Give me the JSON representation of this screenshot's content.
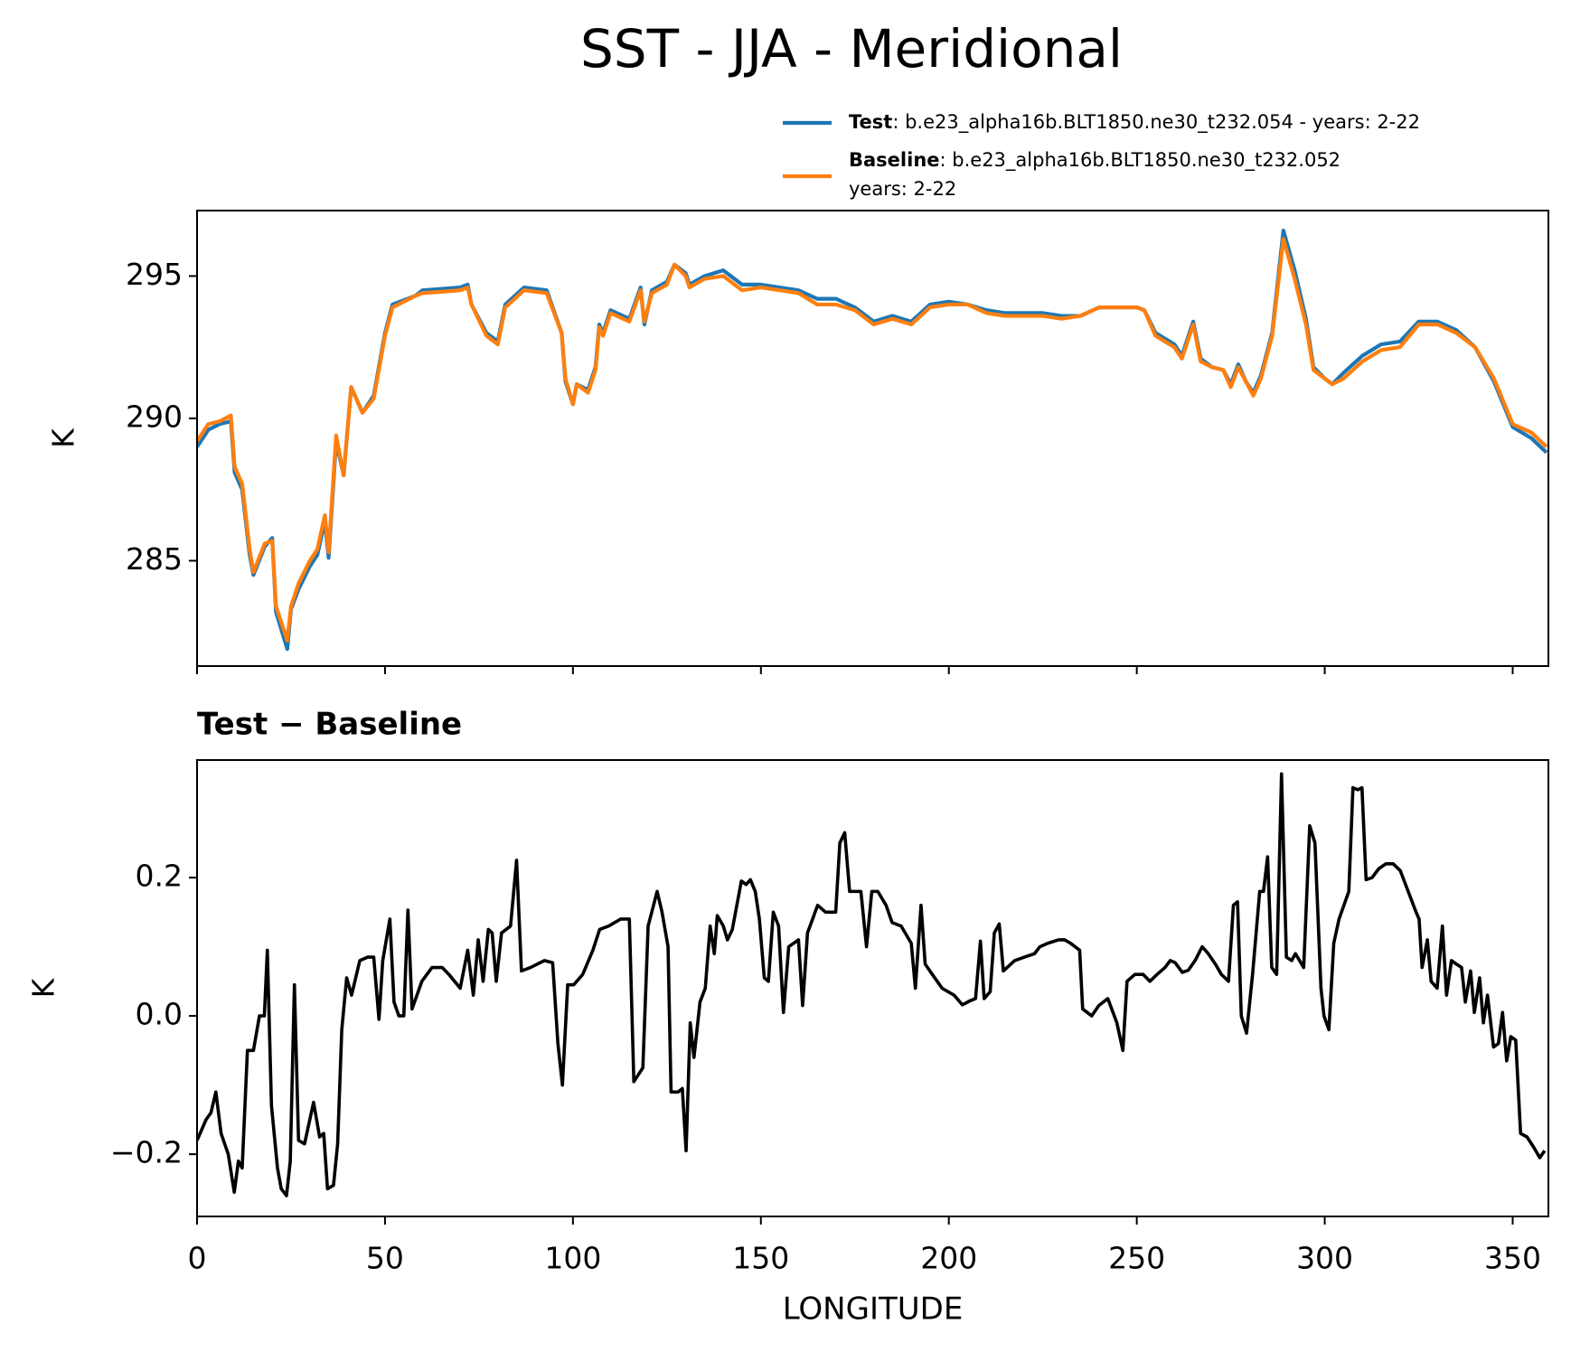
{
  "title": "SST - JJA - Meridional",
  "chart_data": [
    {
      "type": "line",
      "ylabel": "K",
      "x": [
        0,
        3,
        6,
        9,
        10,
        12,
        14,
        15,
        18,
        20,
        21,
        24,
        25,
        27,
        30,
        32,
        34,
        35,
        37,
        39,
        41,
        44,
        47,
        50,
        52,
        58,
        60,
        70,
        72,
        73,
        77,
        80,
        82,
        87,
        93,
        97,
        98,
        100,
        101,
        104,
        106,
        107,
        108,
        110,
        115,
        118,
        119,
        121,
        125,
        127,
        130,
        131,
        135,
        140,
        145,
        150,
        155,
        160,
        165,
        170,
        175,
        180,
        185,
        190,
        195,
        200,
        205,
        210,
        215,
        220,
        225,
        230,
        235,
        240,
        245,
        250,
        252,
        255,
        260,
        262,
        265,
        267,
        270,
        273,
        275,
        277,
        279,
        281,
        283,
        286,
        289,
        292,
        295,
        297,
        300,
        302,
        305,
        310,
        315,
        320,
        325,
        330,
        335,
        340,
        345,
        350,
        355,
        359
      ],
      "series": [
        {
          "name": "Test",
          "description": [
            ": b.e23_alpha16b.BLT1850.ne30_t232.054 - years: 2-22"
          ],
          "color": "#1f77b4",
          "values": [
            289.0,
            289.6,
            289.8,
            289.9,
            288.1,
            287.5,
            285.2,
            284.5,
            285.5,
            285.8,
            283.2,
            281.9,
            283.3,
            284.0,
            284.8,
            285.2,
            286.4,
            285.1,
            289.2,
            288.0,
            291.1,
            290.2,
            290.8,
            293.0,
            294.0,
            294.3,
            294.5,
            294.6,
            294.7,
            294.0,
            293.0,
            292.7,
            294.0,
            294.6,
            294.5,
            293.0,
            291.3,
            290.5,
            291.2,
            291.0,
            291.8,
            293.3,
            293.0,
            293.8,
            293.5,
            294.6,
            293.3,
            294.5,
            294.8,
            295.4,
            295.1,
            294.7,
            295.0,
            295.2,
            294.7,
            294.7,
            294.6,
            294.5,
            294.2,
            294.2,
            293.9,
            293.4,
            293.6,
            293.4,
            294.0,
            294.1,
            294.0,
            293.8,
            293.7,
            293.7,
            293.7,
            293.6,
            293.6,
            293.9,
            293.9,
            293.9,
            293.8,
            293.0,
            292.6,
            292.2,
            293.4,
            292.1,
            291.8,
            291.7,
            291.2,
            291.9,
            291.3,
            290.9,
            291.5,
            293.0,
            296.6,
            295.2,
            293.5,
            291.8,
            291.4,
            291.2,
            291.6,
            292.2,
            292.6,
            292.7,
            293.4,
            293.4,
            293.1,
            292.5,
            291.3,
            289.7,
            289.3,
            288.8
          ]
        },
        {
          "name": "Baseline",
          "description": [
            ": b.e23_alpha16b.BLT1850.ne30_t232.052",
            "years: 2-22"
          ],
          "color": "#ff7f0e",
          "values": [
            289.2,
            289.8,
            289.9,
            290.1,
            288.3,
            287.7,
            285.4,
            284.6,
            285.6,
            285.7,
            283.4,
            282.2,
            283.4,
            284.2,
            285.0,
            285.4,
            286.6,
            285.3,
            289.4,
            288.0,
            291.1,
            290.2,
            290.7,
            292.9,
            293.9,
            294.3,
            294.4,
            294.5,
            294.6,
            294.0,
            292.9,
            292.6,
            293.9,
            294.5,
            294.4,
            293.0,
            291.4,
            290.5,
            291.2,
            290.9,
            291.7,
            293.2,
            292.9,
            293.7,
            293.4,
            294.5,
            293.4,
            294.4,
            294.7,
            295.4,
            295.0,
            294.6,
            294.9,
            295.0,
            294.5,
            294.6,
            294.5,
            294.4,
            294.0,
            294.0,
            293.8,
            293.3,
            293.5,
            293.3,
            293.9,
            294.0,
            294.0,
            293.7,
            293.6,
            293.6,
            293.6,
            293.5,
            293.6,
            293.9,
            293.9,
            293.9,
            293.8,
            292.9,
            292.5,
            292.1,
            293.3,
            292.0,
            291.8,
            291.7,
            291.1,
            291.8,
            291.3,
            290.8,
            291.4,
            292.9,
            296.3,
            294.9,
            293.3,
            291.7,
            291.4,
            291.2,
            291.4,
            292.0,
            292.4,
            292.5,
            293.3,
            293.3,
            293.0,
            292.5,
            291.4,
            289.8,
            289.5,
            289.0
          ]
        }
      ],
      "xlim": [
        0,
        359.5
      ],
      "xticks": [
        0,
        50,
        100,
        150,
        200,
        250,
        300,
        350
      ],
      "ylim": [
        281.3,
        297.3
      ],
      "yticks": [
        285,
        290,
        295
      ]
    },
    {
      "type": "line",
      "title": "Test − Baseline",
      "xlabel": "LONGITUDE",
      "ylabel": "K",
      "color": "#000000",
      "x": [
        0,
        2.4,
        3.7,
        5,
        6.4,
        8.3,
        9.9,
        11,
        12,
        13.4,
        15,
        16.6,
        17.9,
        18.7,
        19.8,
        21.4,
        22.4,
        23.8,
        24.8,
        25.9,
        27,
        28.6,
        31,
        32.6,
        33.7,
        34.7,
        36.3,
        37.4,
        38.5,
        39.8,
        41.1,
        43.3,
        45.4,
        47,
        48.4,
        49.4,
        51.3,
        52.4,
        53.7,
        55,
        56.1,
        57.2,
        59.8,
        62.5,
        65.2,
        67,
        70,
        72,
        73.5,
        74.8,
        76.1,
        77.5,
        78.5,
        79.6,
        81,
        83.4,
        85,
        86.3,
        88.7,
        92.4,
        94.6,
        96,
        97.2,
        98.6,
        100.2,
        102.6,
        105.3,
        107.1,
        109.5,
        112.7,
        115,
        116.2,
        118.6,
        120,
        122.4,
        123.7,
        125.3,
        126.1,
        128,
        129.1,
        130.1,
        131.2,
        132.2,
        133.8,
        135.2,
        136.5,
        137.6,
        138.4,
        140,
        141.1,
        142.4,
        144.8,
        146.1,
        147.2,
        148.5,
        149.6,
        150.9,
        152,
        153.3,
        154.7,
        156,
        157.4,
        160,
        161.1,
        162.4,
        165.1,
        167.2,
        169.9,
        171,
        172.3,
        173.6,
        176.6,
        178.1,
        179.5,
        181.1,
        183.3,
        184.9,
        187.3,
        190,
        191.1,
        192.6,
        193.7,
        195.6,
        198.2,
        201.4,
        203.6,
        205.7,
        207.1,
        208.4,
        209.4,
        211,
        212.1,
        213.4,
        214.5,
        217.5,
        220.1,
        222.8,
        224.2,
        226.3,
        229.2,
        230.8,
        232.4,
        234.8,
        235.6,
        238,
        239.9,
        242.3,
        244.7,
        246.3,
        247.4,
        249.5,
        251.7,
        253.5,
        255.4,
        257.5,
        258.9,
        260.2,
        262.1,
        263.7,
        265.5,
        267.4,
        269,
        270.9,
        272.5,
        274.4,
        275.7,
        276.8,
        277.8,
        279.2,
        280.8,
        282.7,
        283.7,
        284.8,
        285.9,
        287.2,
        288.5,
        289.8,
        291.2,
        292.2,
        294.4,
        296,
        297.4,
        299,
        299.8,
        301.1,
        302.4,
        303.8,
        305.1,
        306.4,
        307.5,
        308.8,
        309.9,
        311,
        312.6,
        314.4,
        316.3,
        318.2,
        320.1,
        322.2,
        324.3,
        325.1,
        325.9,
        327.3,
        328.3,
        329.9,
        331.3,
        332.4,
        333.7,
        335,
        336.4,
        337.4,
        338.8,
        339.8,
        341.2,
        342.2,
        343.3,
        344.9,
        346.2,
        347.3,
        348.4,
        349.5,
        350.8,
        352.1,
        353.8,
        355.6,
        357.2,
        358.5
      ],
      "values": [
        -0.18,
        -0.15,
        -0.14,
        -0.11,
        -0.17,
        -0.2,
        -0.255,
        -0.21,
        -0.22,
        -0.05,
        -0.05,
        0.0,
        0.0,
        0.095,
        -0.13,
        -0.22,
        -0.25,
        -0.26,
        -0.21,
        0.045,
        -0.18,
        -0.185,
        -0.125,
        -0.175,
        -0.17,
        -0.25,
        -0.245,
        -0.185,
        -0.02,
        0.055,
        0.03,
        0.08,
        0.085,
        0.085,
        -0.005,
        0.08,
        0.14,
        0.02,
        0.0,
        0.0,
        0.153,
        0.01,
        0.05,
        0.07,
        0.07,
        0.06,
        0.04,
        0.095,
        0.03,
        0.11,
        0.05,
        0.125,
        0.12,
        0.05,
        0.12,
        0.13,
        0.225,
        0.065,
        0.07,
        0.08,
        0.077,
        -0.04,
        -0.1,
        0.045,
        0.045,
        0.06,
        0.095,
        0.125,
        0.13,
        0.14,
        0.14,
        -0.095,
        -0.075,
        0.13,
        0.18,
        0.15,
        0.1,
        -0.11,
        -0.11,
        -0.105,
        -0.195,
        -0.01,
        -0.06,
        0.02,
        0.04,
        0.13,
        0.09,
        0.145,
        0.13,
        0.11,
        0.125,
        0.195,
        0.19,
        0.197,
        0.18,
        0.14,
        0.055,
        0.05,
        0.15,
        0.13,
        0.005,
        0.1,
        0.11,
        0.015,
        0.12,
        0.16,
        0.15,
        0.15,
        0.25,
        0.265,
        0.18,
        0.18,
        0.1,
        0.18,
        0.18,
        0.16,
        0.135,
        0.13,
        0.105,
        0.04,
        0.16,
        0.075,
        0.06,
        0.04,
        0.03,
        0.016,
        0.022,
        0.025,
        0.108,
        0.025,
        0.035,
        0.12,
        0.133,
        0.065,
        0.08,
        0.085,
        0.09,
        0.1,
        0.105,
        0.11,
        0.11,
        0.105,
        0.095,
        0.01,
        0.0,
        0.015,
        0.025,
        -0.01,
        -0.05,
        0.05,
        0.06,
        0.06,
        0.05,
        0.06,
        0.07,
        0.08,
        0.077,
        0.063,
        0.066,
        0.08,
        0.1,
        0.09,
        0.075,
        0.06,
        0.05,
        0.16,
        0.165,
        0.0,
        -0.025,
        0.06,
        0.18,
        0.18,
        0.23,
        0.07,
        0.06,
        0.35,
        0.085,
        0.08,
        0.09,
        0.07,
        0.275,
        0.25,
        0.04,
        0.0,
        -0.02,
        0.105,
        0.14,
        0.16,
        0.18,
        0.33,
        0.327,
        0.33,
        0.197,
        0.2,
        0.213,
        0.22,
        0.22,
        0.21,
        0.18,
        0.15,
        0.14,
        0.07,
        0.11,
        0.05,
        0.04,
        0.13,
        0.03,
        0.08,
        0.075,
        0.07,
        0.02,
        0.065,
        0.005,
        0.055,
        -0.01,
        0.03,
        -0.045,
        -0.04,
        0.005,
        -0.065,
        -0.03,
        -0.035,
        -0.17,
        -0.175,
        -0.19,
        -0.205,
        -0.195
      ],
      "xlim": [
        0,
        359.5
      ],
      "xticks": [
        0,
        50,
        100,
        150,
        200,
        250,
        300,
        350
      ],
      "ylim": [
        -0.29,
        0.37
      ],
      "yticks": [
        {
          "value": -0.2,
          "label": "−0.2"
        },
        {
          "value": 0,
          "label": "0.0"
        },
        {
          "value": 0.2,
          "label": "0.2"
        }
      ]
    }
  ]
}
